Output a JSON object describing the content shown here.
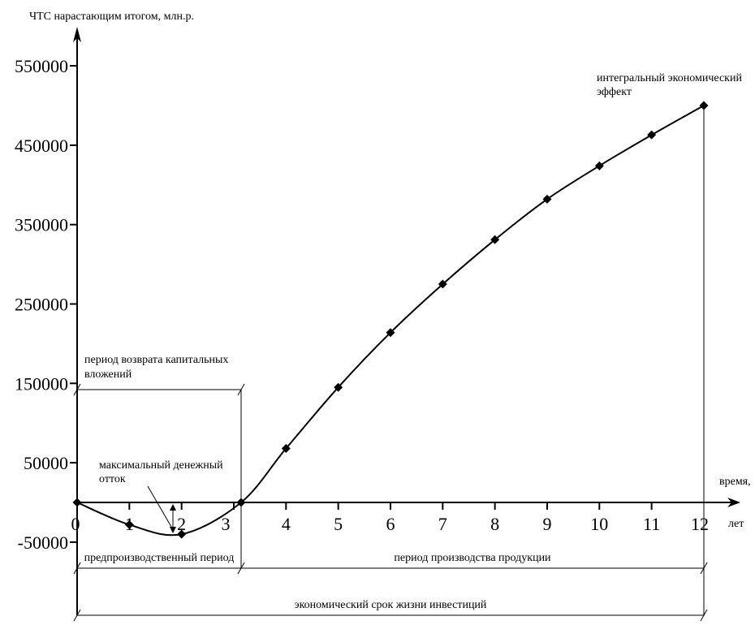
{
  "chart_data": {
    "type": "line",
    "title": "ЧТС нарастающим итогом, млн.р.",
    "ylabel": "ЧТС нарастающим итогом, млн.р.",
    "xlabel": "время, лет",
    "xlabel_line1": "время,",
    "xlabel_line2": "лет",
    "x": [
      0,
      1,
      2,
      3,
      4,
      5,
      6,
      7,
      8,
      9,
      10,
      11,
      12
    ],
    "values": [
      0,
      -28000,
      -40000,
      0,
      68000,
      145000,
      214000,
      275000,
      331000,
      382000,
      424000,
      463000,
      500000
    ],
    "x_ticks": [
      0,
      1,
      2,
      3,
      4,
      5,
      6,
      7,
      8,
      9,
      10,
      11,
      12
    ],
    "y_ticks": [
      -50000,
      50000,
      150000,
      250000,
      350000,
      450000,
      550000
    ],
    "xlim": [
      0,
      12.7
    ],
    "ylim": [
      -75000,
      595000
    ],
    "grid": false,
    "legend": "none",
    "marker": "diamond",
    "line_color": "#000000",
    "background_color": "#ffffff",
    "annotations": {
      "integral_effect": "интегральный экономический эффект",
      "payback_period": "период возврата капитальных вложений",
      "max_outflow": "максимальный денежный отток",
      "preproduction_period": "предпроизводственный период",
      "production_period": "период производства продукции",
      "economic_life": "экономический срок жизни инвестиций"
    }
  }
}
